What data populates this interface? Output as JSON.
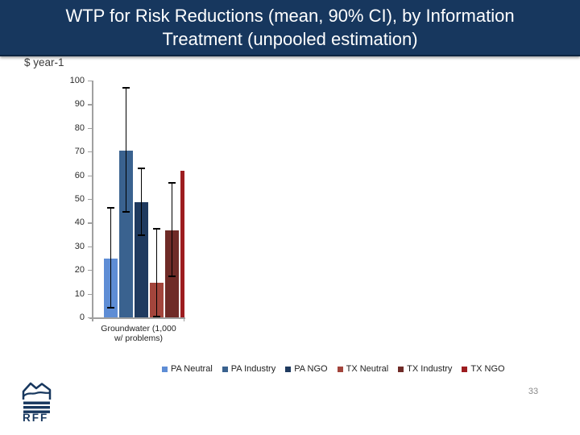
{
  "slide": {
    "title": {
      "line1": "WTP for Risk Reductions (mean, 90% CI), by Information",
      "line2": "Treatment (unpooled estimation)"
    },
    "page_number": "33",
    "logo": {
      "text": "RFF"
    }
  },
  "chart_data": {
    "type": "bar",
    "title": "WTP for Risk Reductions (mean, 90% CI), by Information Treatment (unpooled estimation)",
    "ylabel": "$ year-1",
    "xlabel": "",
    "categories": [
      "Groundwater (1,000 w/ problems)"
    ],
    "category_label_lines": [
      "Groundwater (1,000",
      "w/ problems)"
    ],
    "y_axis": {
      "min": 0,
      "max": 100,
      "step": 10,
      "ticks": [
        0,
        10,
        20,
        30,
        40,
        50,
        60,
        70,
        80,
        90,
        100
      ]
    },
    "grid": false,
    "legend_position": "bottom",
    "error_bars": "90% CI",
    "series": [
      {
        "name": "PA Neutral",
        "color": "#5E8DD5",
        "value": 24.8,
        "ci_low": 4.0,
        "ci_high": 46.2
      },
      {
        "name": "PA Industry",
        "color": "#3A628F",
        "value": 70.4,
        "ci_low": 44.5,
        "ci_high": 96.9
      },
      {
        "name": "PA NGO",
        "color": "#1F3A5F",
        "value": 48.6,
        "ci_low": 34.7,
        "ci_high": 62.9
      },
      {
        "name": "TX Neutral",
        "color": "#A3453C",
        "value": 14.6,
        "ci_low": 0.3,
        "ci_high": 37.5
      },
      {
        "name": "TX Industry",
        "color": "#6F2B27",
        "value": 36.6,
        "ci_low": 17.3,
        "ci_high": 56.8
      },
      {
        "name": "TX NGO",
        "color": "#9D1D20",
        "value": 61.8,
        "ci_low": null,
        "ci_high": null,
        "clipped": true
      }
    ]
  },
  "colors": {
    "header_bg": "#17375E",
    "header_border": "#0C2440",
    "axis": "#A0A0A0",
    "error_bar": "#000000",
    "text_dark": "#262626",
    "page_number": "#8A8A8A",
    "logo_navy": "#17375E"
  }
}
